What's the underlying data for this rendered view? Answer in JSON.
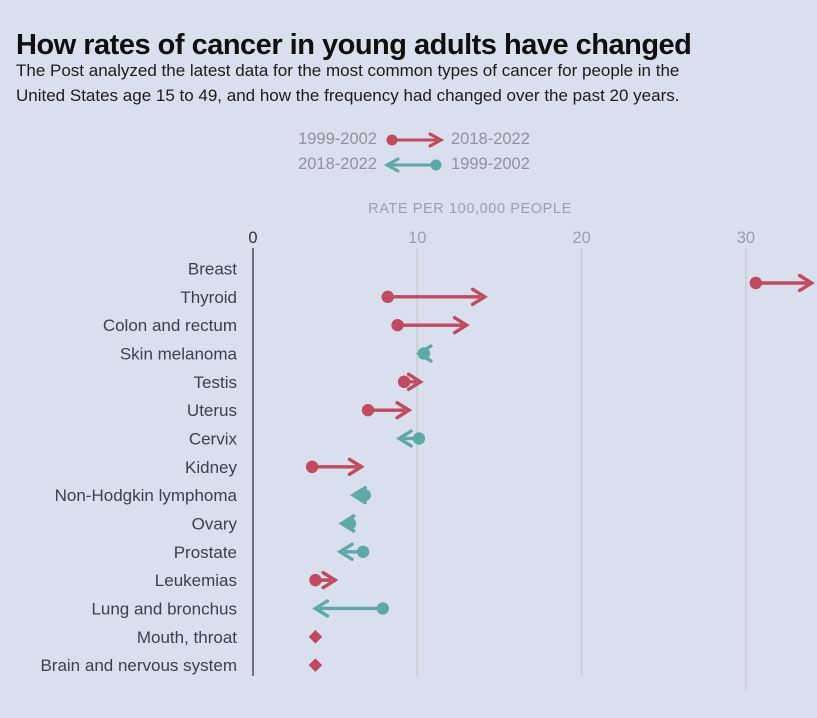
{
  "title": "How rates of cancer in young adults have changed",
  "subtitle": [
    "The Post analyzed the latest data for the most common types of cancer for people in the",
    "United States age 15 to 49, and how the frequency had changed over the past 20 years."
  ],
  "legend": {
    "rows": [
      {
        "left": "1999-2002",
        "right": "2018-2022",
        "direction": "increase"
      },
      {
        "left": "2018-2022",
        "right": "1999-2002",
        "direction": "decrease"
      }
    ]
  },
  "axis": {
    "label": "RATE PER 100,000 PEOPLE",
    "ticks": [
      0,
      10,
      20,
      30
    ]
  },
  "colors": {
    "background": "#d9dfec",
    "increase": "#c04a5f",
    "decrease": "#5fa8a8",
    "grid": "#c4c8d1",
    "zero_line": "#494c52",
    "tick_zero": "#2e3238",
    "tick_gray": "#9aa0ab",
    "category_label": "#3b414c"
  },
  "chart_data": {
    "type": "arrow",
    "title": "How rates of cancer in young adults have changed",
    "xlabel": "RATE PER 100,000 PEOPLE",
    "x_ticks": [
      0,
      10,
      20,
      30
    ],
    "x_range": [
      0,
      34.5
    ],
    "grid": "vertical",
    "legend_position": "top",
    "categories": [
      "Breast",
      "Thyroid",
      "Colon and rectum",
      "Skin melanoma",
      "Testis",
      "Uterus",
      "Cervix",
      "Kidney",
      "Non-Hodgkin lymphoma",
      "Ovary",
      "Prostate",
      "Leukemias",
      "Lung and bronchus",
      "Mouth, throat",
      "Brain and nervous system"
    ],
    "series": [
      {
        "name": "1999-2002",
        "values": [
          30.6,
          8.2,
          8.8,
          10.4,
          9.2,
          7.0,
          10.1,
          3.6,
          6.8,
          5.9,
          6.7,
          3.8,
          7.9,
          3.8,
          3.8
        ]
      },
      {
        "name": "2018-2022",
        "values": [
          34.0,
          14.1,
          13.0,
          10.1,
          10.2,
          9.5,
          8.9,
          6.6,
          6.1,
          5.4,
          5.3,
          5.0,
          3.8,
          3.8,
          3.8
        ]
      }
    ]
  }
}
